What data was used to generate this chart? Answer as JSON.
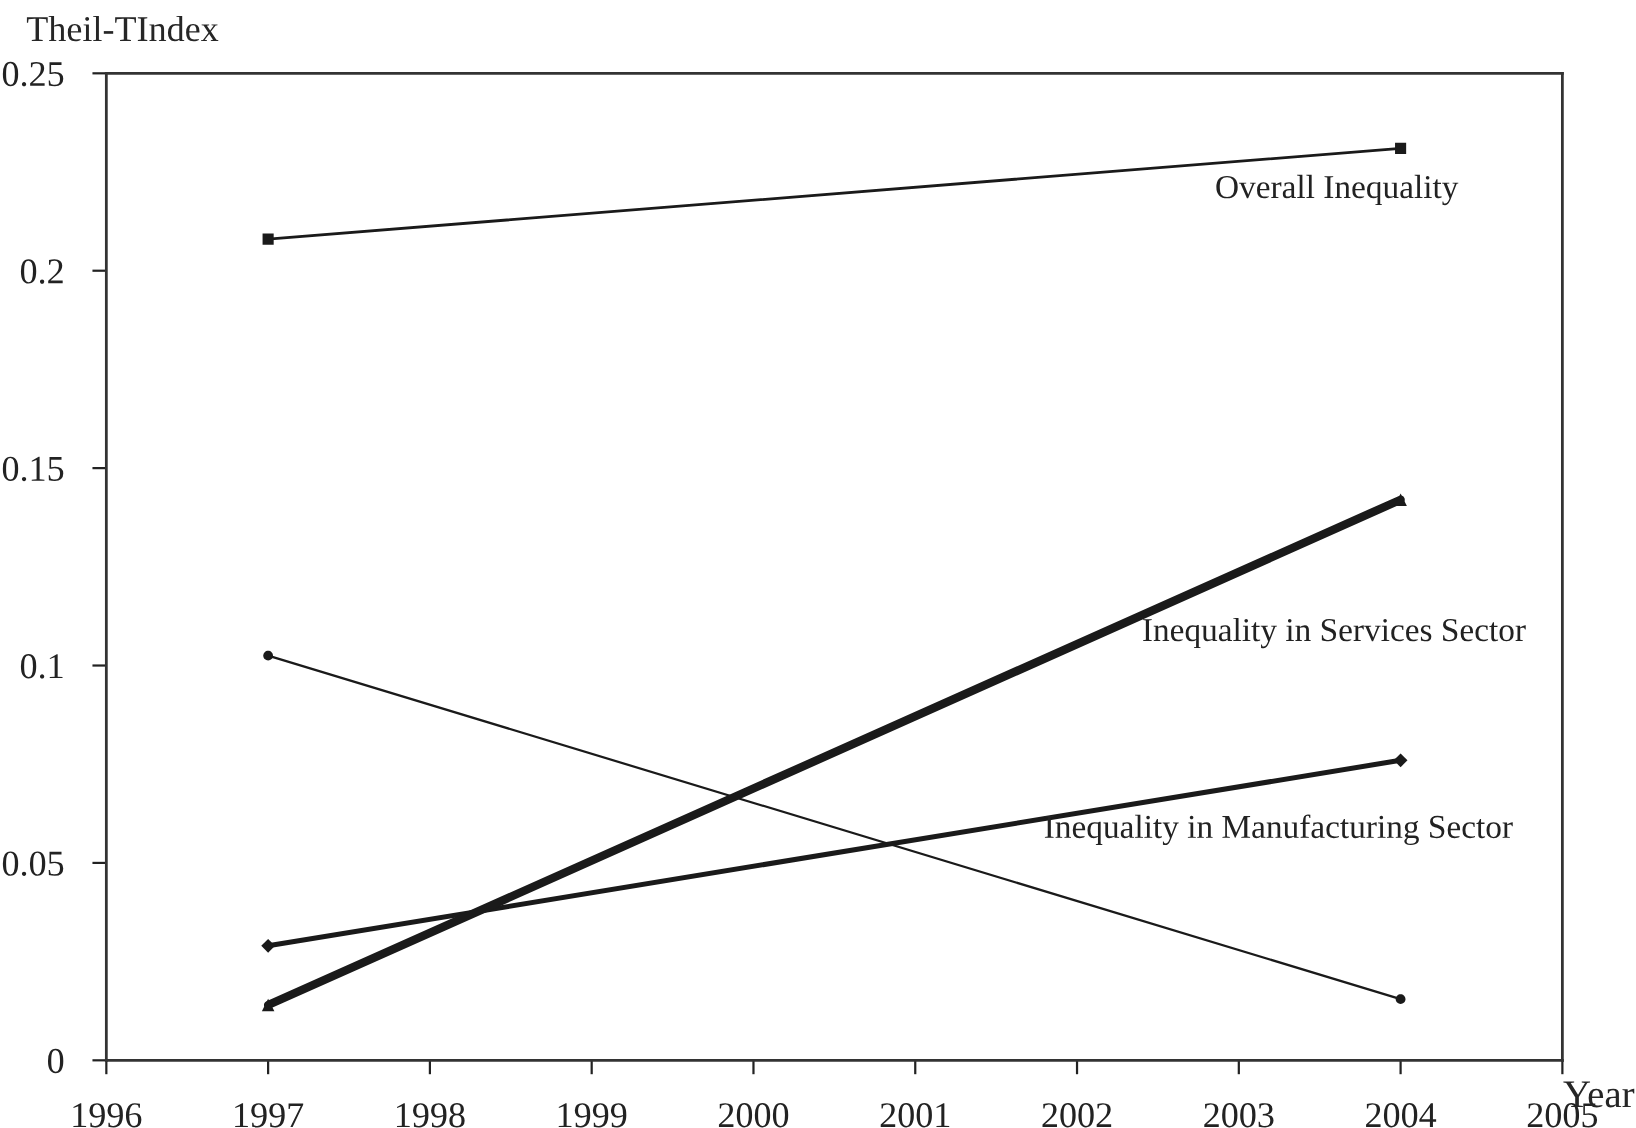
{
  "chart_data": {
    "type": "line",
    "xlabel": "Year",
    "ylabel": "Theil-TIndex",
    "x": [
      1997,
      2004
    ],
    "series": [
      {
        "name": "Overall Inequality",
        "color": "#1a1a1a",
        "marker": "square",
        "values": [
          0.208,
          0.231
        ]
      },
      {
        "color": "#1a1a1a",
        "marker": "circle",
        "values": [
          0.1025,
          0.0155
        ]
      },
      {
        "name": "Inequality in Manufacturing Sector",
        "color": "#1a1a1a",
        "marker": "diamond",
        "values": [
          0.029,
          0.076
        ]
      },
      {
        "name": "Inequality in Services Sector",
        "color": "#1a1a1a",
        "marker": "triangle",
        "values": [
          0.014,
          0.142
        ]
      }
    ],
    "xlim": [
      1996,
      2005
    ],
    "xticks": [
      1996,
      1997,
      1998,
      1999,
      2000,
      2001,
      2002,
      2003,
      2004,
      2005
    ],
    "ylim": [
      0,
      0.25
    ],
    "yticks": [
      0,
      0.05,
      0.1,
      0.15,
      0.2,
      0.25
    ],
    "grid": false,
    "line_style": "solid"
  }
}
